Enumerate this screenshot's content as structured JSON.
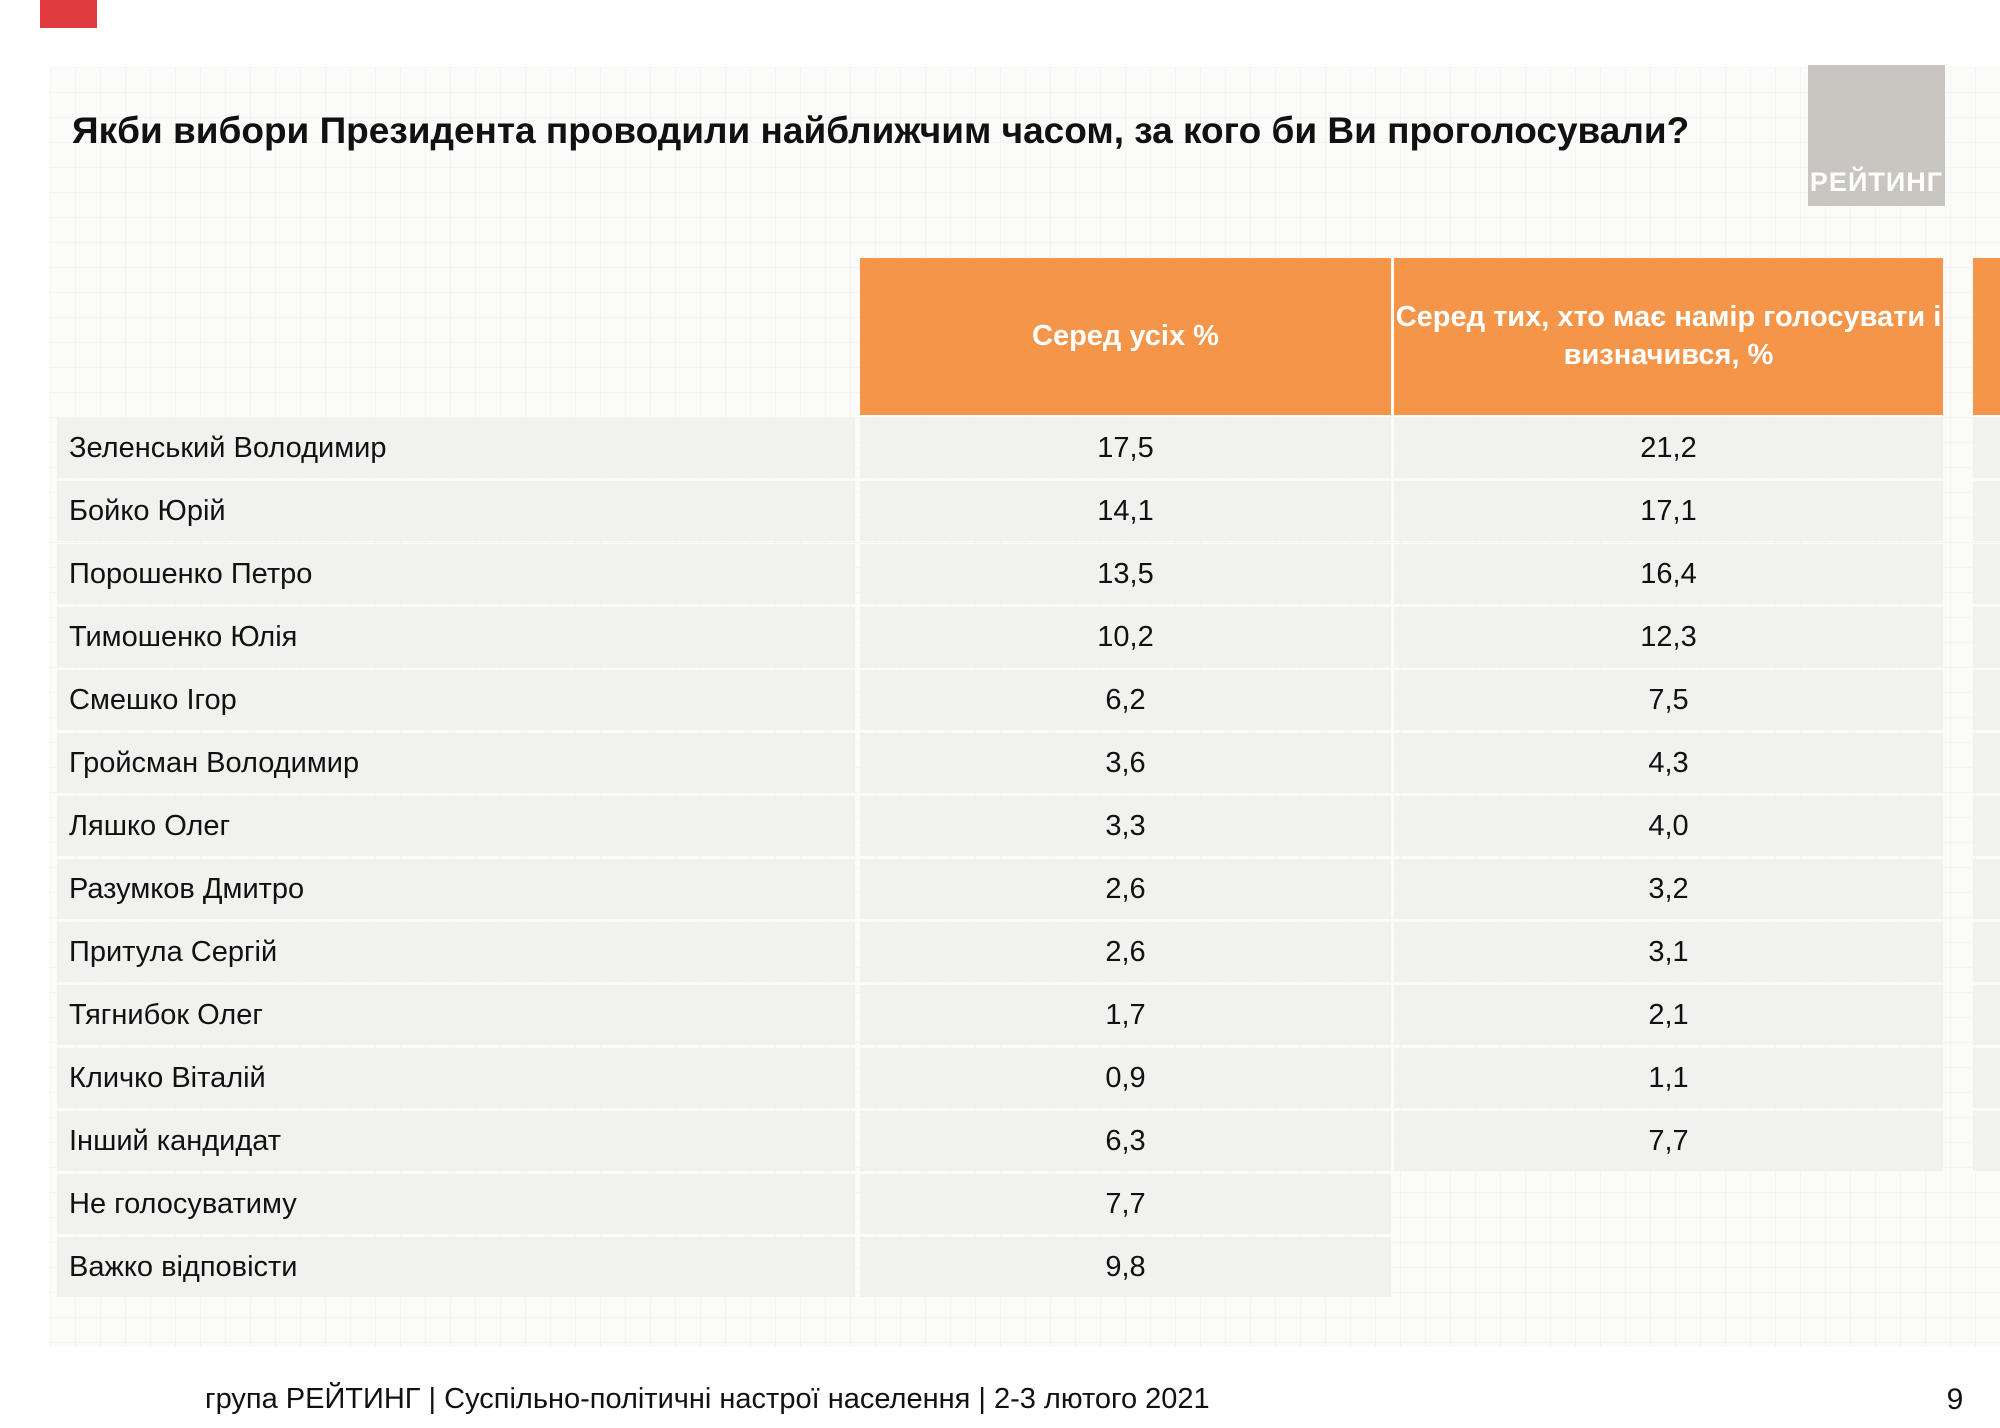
{
  "title": "Якби вибори Президента проводили найближчим часом, за кого би Ви проголосували?",
  "logo": {
    "text": "РЕЙТИНГ"
  },
  "header": {
    "col_all": "Серед усіх %",
    "col_decided": "Серед тих, хто має намір голосувати і\nвизначився, %"
  },
  "footer": {
    "line": "група РЕЙТИНГ | Суспільно-політичні настрої населення  | 2-3 лютого 2021",
    "page": "9"
  },
  "colors": {
    "orange": "#F4954A",
    "row_grey": "#F1F1F0",
    "logo_grey": "#C9C5C1",
    "red": "#E13B3F"
  },
  "chart_data": {
    "type": "table",
    "title": "Якби вибори Президента проводили найближчим часом, за кого би Ви проголосували?",
    "columns": [
      "",
      "Серед усіх %",
      "Серед тих, хто має намір голосувати і визначився, %"
    ],
    "rows": [
      [
        "Зеленський Володимир",
        "17,5",
        "21,2"
      ],
      [
        "Бойко Юрій",
        "14,1",
        "17,1"
      ],
      [
        "Порошенко Петро",
        "13,5",
        "16,4"
      ],
      [
        "Тимошенко Юлія",
        "10,2",
        "12,3"
      ],
      [
        "Смешко Ігор",
        "6,2",
        "7,5"
      ],
      [
        "Гройсман Володимир",
        "3,6",
        "4,3"
      ],
      [
        "Ляшко Олег",
        "3,3",
        "4,0"
      ],
      [
        "Разумков Дмитро",
        "2,6",
        "3,2"
      ],
      [
        "Притула Сергій",
        "2,6",
        "3,1"
      ],
      [
        "Тягнибок Олег",
        "1,7",
        "2,1"
      ],
      [
        "Кличко Віталій",
        "0,9",
        "1,1"
      ],
      [
        "Інший кандидат",
        "6,3",
        "7,7"
      ],
      [
        "Не голосуватиму",
        "7,7",
        ""
      ],
      [
        "Важко відповісти",
        "9,8",
        ""
      ]
    ]
  }
}
